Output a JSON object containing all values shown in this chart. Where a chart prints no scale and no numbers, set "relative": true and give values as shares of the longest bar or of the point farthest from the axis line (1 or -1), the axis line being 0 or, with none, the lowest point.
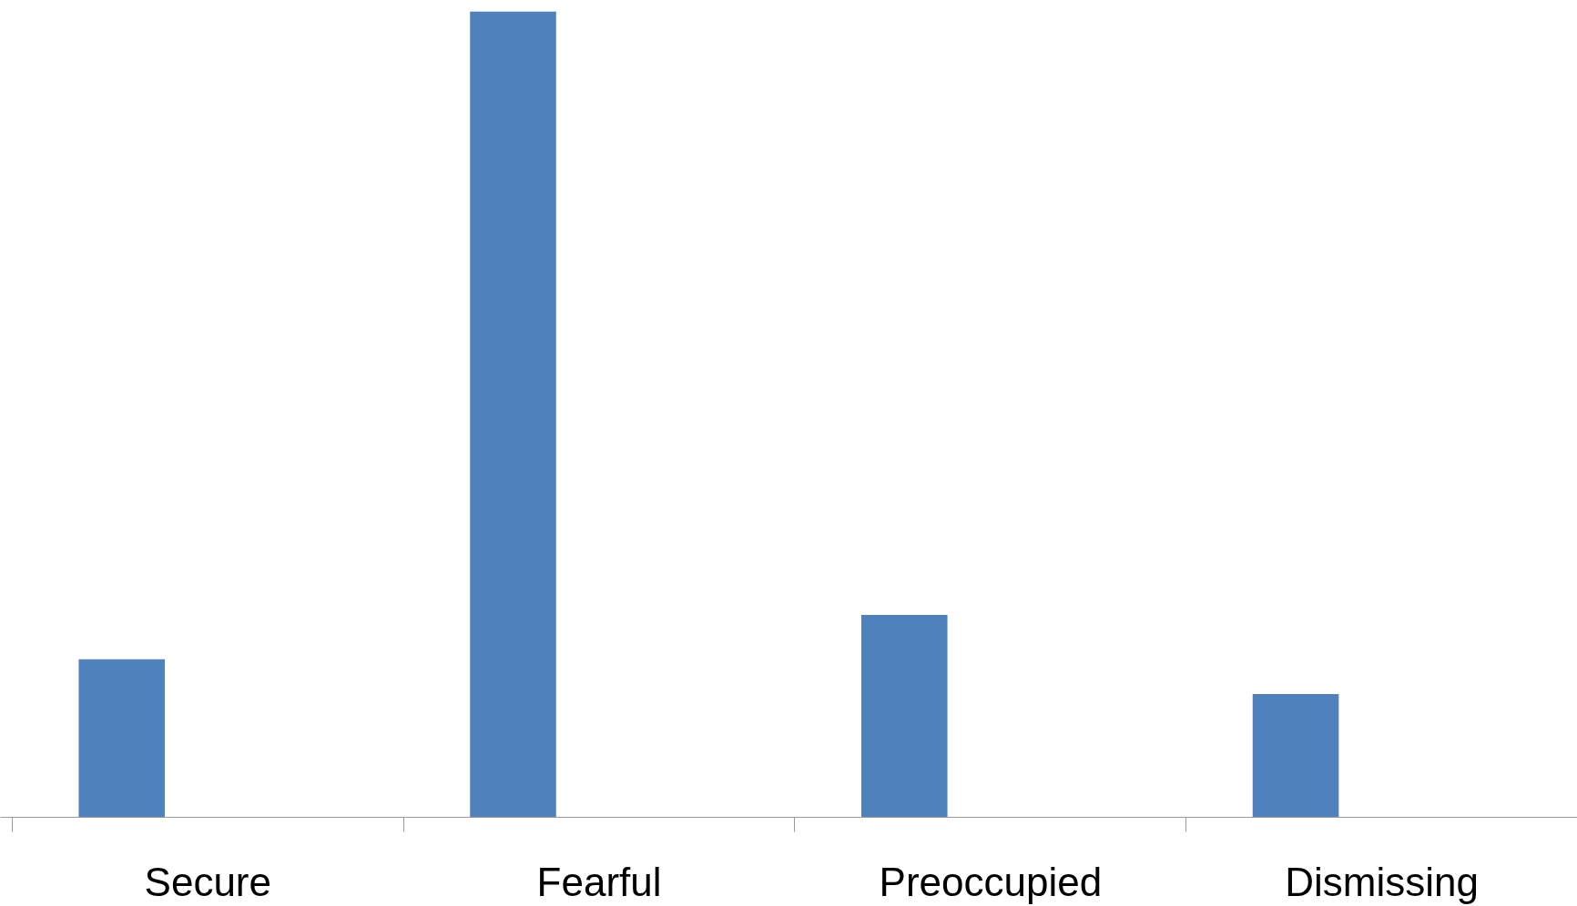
{
  "chart_data": {
    "type": "bar",
    "relative": true,
    "color": "#4f81bd",
    "categories": [
      "Secure",
      "Fearful",
      "Preoccupied",
      "Dismissing"
    ],
    "values": [
      0.196,
      1,
      0.251,
      0.153
    ]
  }
}
